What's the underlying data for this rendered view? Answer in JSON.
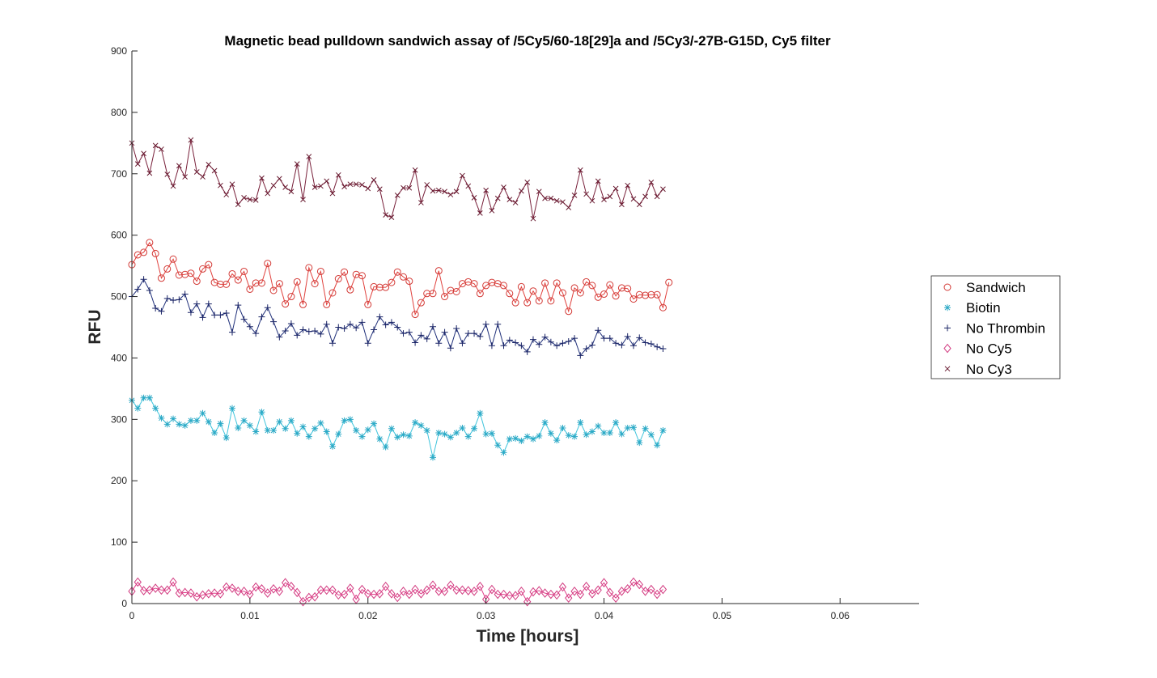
{
  "colors": {
    "background": "#ffffff",
    "axis": "#262626",
    "legend_border": "#262626"
  },
  "chart_data": {
    "type": "line",
    "title": "Magnetic bead pulldown sandwich assay of /5Cy5/60-18[29]a and /5Cy3/-27B-G15D, Cy5 filter",
    "xlabel": "Time [hours]",
    "ylabel": "RFU",
    "xlim": [
      0,
      0.0667
    ],
    "ylim": [
      0,
      900
    ],
    "xticks": [
      0,
      0.01,
      0.02,
      0.03,
      0.04,
      0.05,
      0.06
    ],
    "xtick_labels": [
      "0",
      "0.01",
      "0.02",
      "0.03",
      "0.04",
      "0.05",
      "0.06"
    ],
    "yticks": [
      0,
      100,
      200,
      300,
      400,
      500,
      600,
      700,
      800,
      900
    ],
    "ytick_labels": [
      "0",
      "100",
      "200",
      "300",
      "400",
      "500",
      "600",
      "700",
      "800",
      "900"
    ],
    "grid": false,
    "legend_position": "right",
    "x_start": 0,
    "x_step": 0.0005,
    "series": [
      {
        "name": "Sandwich",
        "marker": "circle",
        "line_color": "#e0403c",
        "marker_color": "#d33a36",
        "values": [
          552,
          568,
          572,
          588,
          570,
          530,
          545,
          561,
          535,
          536,
          538,
          525,
          545,
          552,
          523,
          520,
          520,
          537,
          527,
          541,
          512,
          522,
          522,
          554,
          510,
          521,
          488,
          500,
          524,
          487,
          547,
          521,
          541,
          487,
          506,
          529,
          540,
          511,
          536,
          534,
          487,
          516,
          515,
          515,
          523,
          540,
          532,
          525,
          471,
          490,
          505,
          505,
          542,
          500,
          510,
          508,
          521,
          524,
          521,
          505,
          518,
          523,
          521,
          518,
          505,
          490,
          516,
          490,
          509,
          493,
          522,
          493,
          522,
          506,
          476,
          514,
          506,
          524,
          518,
          499,
          504,
          519,
          501,
          514,
          513,
          496,
          503,
          502,
          503,
          503,
          482,
          523
        ]
      },
      {
        "name": "Biotin",
        "marker": "asterisk",
        "line_color": "#3fc4dc",
        "marker_color": "#2ba9c6",
        "values": [
          331,
          318,
          335,
          335,
          318,
          302,
          292,
          301,
          292,
          290,
          298,
          298,
          310,
          296,
          278,
          293,
          270,
          318,
          286,
          298,
          290,
          280,
          312,
          282,
          282,
          296,
          285,
          298,
          277,
          288,
          272,
          285,
          294,
          280,
          256,
          276,
          298,
          300,
          282,
          272,
          283,
          293,
          268,
          255,
          285,
          271,
          275,
          273,
          295,
          290,
          282,
          238,
          278,
          276,
          271,
          278,
          286,
          272,
          285,
          310,
          276,
          277,
          258,
          246,
          268,
          269,
          265,
          272,
          268,
          273,
          295,
          277,
          266,
          286,
          274,
          272,
          295,
          275,
          280,
          289,
          278,
          278,
          295,
          276,
          286,
          287,
          262,
          285,
          275,
          258,
          282
        ]
      },
      {
        "name": "No Thrombin",
        "marker": "plus",
        "line_color": "#20307a",
        "marker_color": "#1a2466",
        "values": [
          500,
          512,
          528,
          510,
          481,
          476,
          497,
          494,
          495,
          504,
          474,
          488,
          466,
          488,
          470,
          470,
          473,
          442,
          486,
          463,
          451,
          440,
          467,
          482,
          459,
          434,
          444,
          456,
          437,
          446,
          443,
          444,
          439,
          455,
          424,
          450,
          448,
          455,
          449,
          458,
          424,
          446,
          467,
          454,
          458,
          450,
          440,
          442,
          425,
          437,
          431,
          451,
          424,
          442,
          416,
          448,
          424,
          440,
          440,
          435,
          455,
          420,
          455,
          420,
          429,
          425,
          420,
          410,
          430,
          422,
          434,
          426,
          420,
          424,
          427,
          432,
          404,
          415,
          421,
          445,
          432,
          432,
          424,
          421,
          435,
          420,
          433,
          425,
          423,
          418,
          415
        ]
      },
      {
        "name": "No Cy5",
        "marker": "diamond",
        "line_color": "#e0408a",
        "marker_color": "#d23b80",
        "values": [
          20,
          35,
          21,
          22,
          25,
          22,
          22,
          35,
          17,
          18,
          17,
          11,
          14,
          16,
          17,
          16,
          27,
          25,
          20,
          20,
          15,
          27,
          24,
          17,
          24,
          20,
          34,
          28,
          18,
          3,
          10,
          11,
          22,
          22,
          22,
          14,
          15,
          25,
          7,
          23,
          16,
          15,
          16,
          28,
          16,
          10,
          20,
          15,
          23,
          16,
          22,
          30,
          20,
          20,
          30,
          22,
          22,
          21,
          20,
          28,
          7,
          23,
          15,
          15,
          13,
          13,
          20,
          3,
          19,
          21,
          17,
          15,
          14,
          27,
          9,
          20,
          15,
          28,
          16,
          22,
          34,
          18,
          9,
          20,
          24,
          35,
          31,
          20,
          23,
          15,
          23
        ]
      },
      {
        "name": "No Cy3",
        "marker": "x",
        "line_color": "#78203a",
        "marker_color": "#681a30",
        "values": [
          750,
          716,
          733,
          701,
          746,
          740,
          699,
          680,
          713,
          695,
          755,
          703,
          695,
          715,
          705,
          681,
          666,
          683,
          650,
          661,
          658,
          657,
          693,
          668,
          681,
          692,
          678,
          671,
          716,
          658,
          728,
          678,
          680,
          688,
          668,
          698,
          679,
          683,
          683,
          682,
          676,
          690,
          675,
          633,
          629,
          665,
          677,
          677,
          706,
          653,
          682,
          672,
          673,
          671,
          666,
          671,
          697,
          680,
          661,
          636,
          673,
          640,
          660,
          678,
          658,
          653,
          672,
          686,
          627,
          671,
          660,
          660,
          656,
          654,
          645,
          665,
          706,
          667,
          656,
          688,
          658,
          663,
          676,
          650,
          681,
          659,
          650,
          663,
          686,
          663,
          675
        ]
      }
    ]
  }
}
